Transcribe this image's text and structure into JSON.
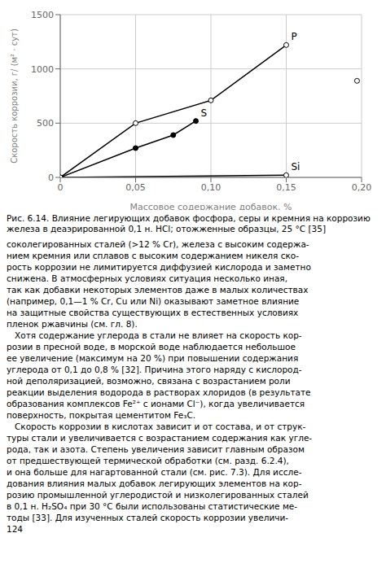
{
  "chart_data": {
    "type": "line",
    "title": "",
    "xlabel": "Массовое содержание добавок, %",
    "ylabel": "Скорость коррозии, г/ (м² · сут)",
    "xlim": [
      0,
      0.2
    ],
    "ylim": [
      0,
      1500
    ],
    "xticks": [
      0,
      {
        "value": 0.05,
        "label": "0,05"
      },
      {
        "value": 0.1,
        "label": "0,10"
      },
      {
        "value": 0.15,
        "label": "0,15"
      },
      {
        "value": 0.2,
        "label": "0,20"
      }
    ],
    "yticks": [
      0,
      500,
      1000,
      1500
    ],
    "grid": true,
    "series": [
      {
        "name": "P",
        "type": "line",
        "color": "#000000",
        "marker": "circle",
        "x": [
          0,
          0.05,
          0.1,
          0.15
        ],
        "values": [
          0,
          500,
          710,
          1220
        ]
      },
      {
        "type": "scatter",
        "color": "#000000",
        "marker": "circle",
        "x": [
          0.197
        ],
        "values": [
          890
        ]
      },
      {
        "name": "S",
        "type": "line",
        "color": "#000000",
        "marker": "filled_circle",
        "x": [
          0,
          0.05,
          0.075,
          0.09
        ],
        "values": [
          0,
          270,
          390,
          520
        ]
      },
      {
        "name": "Si",
        "type": "line",
        "color": "#000000",
        "marker": "circle",
        "x": [
          0,
          0.15
        ],
        "values": [
          0,
          20
        ]
      }
    ]
  },
  "caption": "Рис. 6.14. Влияние легирующих добавок фосфора, серы и кремния на коррозию железа в деаэрированной 0,1 н. HCl; отожженные образцы, 25 °С [35]",
  "body_text": [
    "соколегированных сталей (>12 % Cr), железа с высоким содержа-",
    "нием кремния или сплавов с высоким содержанием никеля ско-",
    "рость коррозии не лимитируется диффузией кислорода и заметно",
    "снижена. В атмосферных условиях ситуация несколько иная,",
    "так как добавки некоторых элементов даже в малых количествах",
    "(например, 0,1—1 % Cr, Cu или Ni) оказывают заметное влияние",
    "на защитные свойства существующих в естественных условиях",
    "пленок ржавчины (см. гл. 8).",
    "   Хотя содержание углерода в стали не влияет на скорость кор-",
    "розии в пресной воде, в морской воде наблюдается небольшое",
    "ее увеличение (максимум на 20 %) при повышении содержания",
    "углерода от 0,1 до 0,8 % [32]. Причина этого наряду с кислород-",
    "ной деполяризацией, возможно, связана с возрастанием роли",
    "реакции выделения водорода в растворах хлоридов (в результате",
    "образования комплексов Fe²⁺ с ионами Cl⁻), когда увеличивается",
    "поверхность, покрытая цементитом Fe₃C.",
    "   Скорость коррозии в кислотах зависит и от состава, и от струк-",
    "туры стали и увеличивается с возрастанием содержания как угле-",
    "рода, так и азота. Степень увеличения зависит главным образом",
    "от предшествующей термической обработки (см. разд. 6.2.4),",
    "и она больше для нагартованной стали (см. рис. 7.3). Для иссле-",
    "дования влияния малых добавок легирующих элементов на кор-",
    "розию промышленной углеродистой и низколегированных сталей",
    "в 0,1 н. H₂SO₄ при 30 °С были использованы статистические ме-",
    "тоды [33]. Для изученных сталей скорость коррозии увеличи-",
    "124"
  ]
}
